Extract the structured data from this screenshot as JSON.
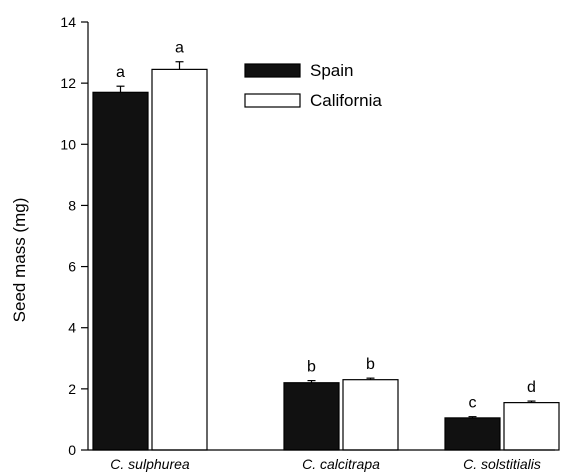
{
  "chart_data": {
    "type": "bar",
    "categories": [
      "C. sulphurea",
      "C. calcitrapa",
      "C. solstitialis"
    ],
    "series": [
      {
        "name": "Spain",
        "values": [
          11.7,
          2.2,
          1.05
        ],
        "errors": [
          0.2,
          0.07,
          0.04
        ],
        "color": "#111111"
      },
      {
        "name": "California",
        "values": [
          12.45,
          2.3,
          1.55
        ],
        "errors": [
          0.25,
          0.05,
          0.05
        ],
        "color": "#ffffff"
      }
    ],
    "letters": [
      [
        "a",
        "a"
      ],
      [
        "b",
        "b"
      ],
      [
        "c",
        "d"
      ]
    ],
    "ylabel": "Seed mass (mg)",
    "ylim": [
      0,
      14
    ],
    "yticks": [
      0,
      2,
      4,
      6,
      8,
      10,
      12,
      14
    ],
    "legend": "top-right"
  }
}
